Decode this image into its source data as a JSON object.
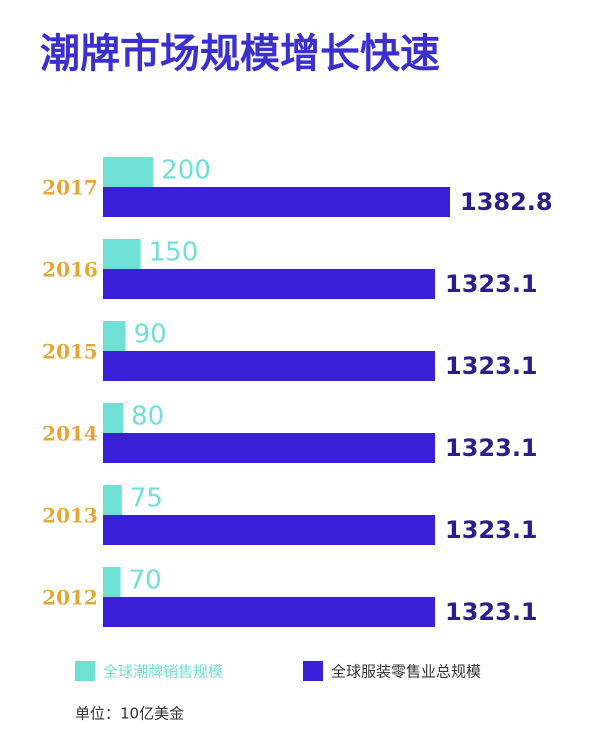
{
  "chart_data": {
    "type": "bar",
    "title": "潮牌市场规模增长快速",
    "categories": [
      "2017",
      "2016",
      "2015",
      "2014",
      "2013",
      "2012"
    ],
    "series": [
      {
        "name": "全球潮牌销售规模",
        "color": "#6fe0d5",
        "values": [
          200,
          150,
          90,
          80,
          75,
          70
        ]
      },
      {
        "name": "全球服装零售业总规模",
        "color": "#3a1fd9",
        "values": [
          1382.8,
          1323.1,
          1323.1,
          1323.1,
          1323.1,
          1323.1
        ]
      }
    ],
    "unit_note": "单位：10亿美金"
  }
}
